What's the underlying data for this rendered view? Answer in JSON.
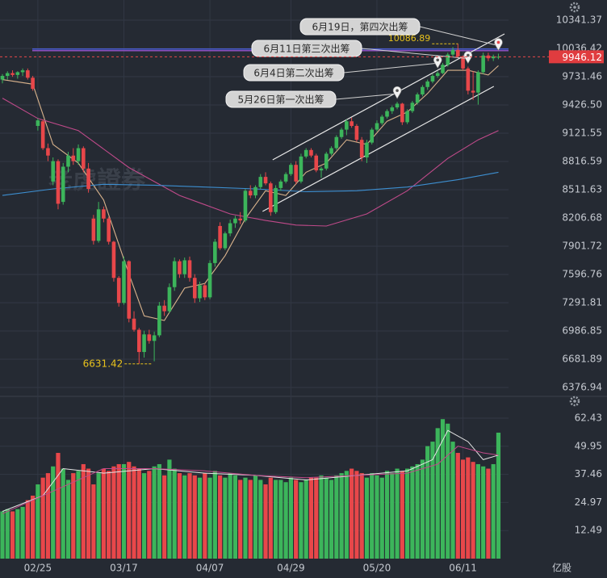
{
  "chart_data": {
    "type": "candlestick",
    "watermark": "老虎證券",
    "categories": [
      null,
      null,
      null,
      null,
      null,
      null,
      null,
      "02/25",
      null,
      null,
      null,
      null,
      null,
      null,
      null,
      null,
      null,
      null,
      null,
      null,
      null,
      null,
      null,
      null,
      "03/17",
      null,
      null,
      null,
      null,
      null,
      null,
      null,
      null,
      null,
      null,
      null,
      null,
      null,
      null,
      null,
      null,
      "04/07",
      null,
      null,
      null,
      null,
      null,
      null,
      null,
      null,
      null,
      null,
      null,
      null,
      null,
      null,
      null,
      "04/29",
      null,
      null,
      null,
      null,
      null,
      null,
      null,
      null,
      null,
      null,
      null,
      null,
      null,
      null,
      null,
      null,
      "05/20",
      null,
      null,
      null,
      null,
      null,
      null,
      null,
      null,
      null,
      null,
      null,
      null,
      null,
      null,
      null,
      null,
      "06/11",
      null,
      null,
      null,
      null,
      null,
      null,
      null
    ],
    "open": [
      9700,
      9740,
      9770,
      9750,
      9780,
      9800,
      9720,
      9200,
      9250,
      8960,
      8600,
      8820,
      8380,
      8760,
      8880,
      8820,
      8960,
      8740,
      8200,
      7960,
      8300,
      8200,
      7950,
      7560,
      7290,
      7740,
      7120,
      7000,
      6760,
      6950,
      6880,
      6940,
      7260,
      7200,
      7460,
      7740,
      7600,
      7750,
      7560,
      7340,
      7480,
      7350,
      7720,
      8120,
      7880,
      8040,
      8150,
      8200,
      8180,
      8500,
      8450,
      8540,
      8650,
      8580,
      8270,
      8530,
      8600,
      8680,
      8780,
      8600,
      8870,
      8940,
      8880,
      8720,
      8740,
      8900,
      8960,
      9080,
      9160,
      9250,
      9200,
      9050,
      8860,
      9020,
      9160,
      9230,
      9300,
      9360,
      9400,
      9440,
      9240,
      9360,
      9450,
      9540,
      9620,
      9680,
      9740,
      9770,
      9860,
      9970,
      10020,
      9950,
      9820,
      9580,
      9560,
      9780,
      9960,
      9930,
      9940
    ],
    "high": [
      9760,
      9790,
      9800,
      9790,
      9820,
      9820,
      9740,
      9280,
      9270,
      9010,
      8860,
      8840,
      8800,
      8920,
      8960,
      9000,
      8980,
      8800,
      8240,
      8380,
      8330,
      8220,
      7960,
      7580,
      7790,
      7750,
      7200,
      7020,
      6990,
      7000,
      6980,
      7300,
      7320,
      7500,
      7780,
      7760,
      7780,
      7790,
      7600,
      7520,
      7500,
      7750,
      7980,
      8160,
      8060,
      8190,
      8230,
      8270,
      8520,
      8560,
      8560,
      8680,
      8700,
      8600,
      8560,
      8620,
      8700,
      8800,
      8820,
      8900,
      8960,
      8960,
      8900,
      8760,
      8920,
      8980,
      9100,
      9180,
      9270,
      9290,
      9220,
      9080,
      9050,
      9180,
      9260,
      9320,
      9380,
      9420,
      9460,
      9450,
      9380,
      9470,
      9560,
      9640,
      9700,
      9760,
      9790,
      9880,
      9990,
      10050,
      10086.89,
      9960,
      9840,
      9790,
      9800,
      9990,
      9990,
      9970,
      9980
    ],
    "low": [
      9660,
      9700,
      9730,
      9710,
      9740,
      9700,
      9580,
      9150,
      8940,
      8820,
      8560,
      8300,
      8350,
      8700,
      8780,
      8780,
      8700,
      8480,
      7920,
      7940,
      8160,
      7920,
      7520,
      7250,
      7270,
      7080,
      6980,
      6631.42,
      6700,
      6850,
      6660,
      6920,
      7150,
      7180,
      7420,
      7560,
      7560,
      7520,
      7290,
      7300,
      7320,
      7330,
      7680,
      7860,
      7860,
      8010,
      8100,
      8140,
      8160,
      8420,
      8420,
      8520,
      8560,
      8230,
      8250,
      8500,
      8580,
      8660,
      8570,
      8580,
      8850,
      8860,
      8700,
      8640,
      8720,
      8880,
      8940,
      9060,
      9100,
      9180,
      9030,
      8820,
      8800,
      9000,
      9140,
      9210,
      9280,
      9330,
      9380,
      9210,
      9220,
      9340,
      9430,
      9520,
      9590,
      9660,
      9720,
      9760,
      9840,
      9950,
      9930,
      9800,
      9540,
      9480,
      9430,
      9760,
      9900,
      9900,
      9920
    ],
    "close": [
      9740,
      9770,
      9750,
      9780,
      9800,
      9720,
      9600,
      9260,
      8960,
      8880,
      8820,
      8360,
      8760,
      8880,
      8820,
      8960,
      8740,
      8520,
      7960,
      8300,
      8200,
      7950,
      7560,
      7290,
      7740,
      7120,
      7000,
      6760,
      6950,
      6880,
      6940,
      7260,
      7200,
      7460,
      7740,
      7600,
      7750,
      7560,
      7340,
      7480,
      7350,
      7720,
      7950,
      7880,
      8040,
      8150,
      8200,
      8180,
      8500,
      8450,
      8540,
      8650,
      8580,
      8270,
      8530,
      8600,
      8680,
      8780,
      8600,
      8870,
      8940,
      8880,
      8720,
      8740,
      8900,
      8960,
      9080,
      9160,
      9250,
      9200,
      9050,
      8860,
      9020,
      9160,
      9230,
      9300,
      9360,
      9400,
      9440,
      9240,
      9360,
      9450,
      9540,
      9620,
      9680,
      9740,
      9770,
      9860,
      9970,
      10020,
      9950,
      9820,
      9580,
      9560,
      9780,
      9960,
      9930,
      9950,
      9946.12
    ],
    "colors": {
      "up": "#3cb55b",
      "down": "#e8474a"
    },
    "ylim": [
      6290,
      10559
    ],
    "yticks": [
      10341.37,
      10036.42,
      9731.46,
      {
        "value": 9426.5,
        "label": "9426.50"
      },
      9121.55,
      8816.59,
      8511.63,
      8206.68,
      7901.72,
      7596.76,
      7291.81,
      6986.85,
      6681.89,
      6376.94
    ],
    "grid": true,
    "moving_averages": [
      {
        "color": "#d9b38c",
        "x": [
          0,
          6,
          10,
          15,
          20,
          25,
          28,
          32,
          36,
          40,
          44,
          48,
          52,
          56,
          60,
          64,
          68,
          72,
          76,
          80,
          84,
          88,
          92,
          96,
          98
        ],
        "values": [
          9700,
          9650,
          9000,
          8800,
          8400,
          7600,
          7150,
          7100,
          7450,
          7500,
          7800,
          8200,
          8500,
          8450,
          8700,
          8800,
          9050,
          9000,
          9250,
          9350,
          9550,
          9800,
          9800,
          9750,
          9850
        ]
      },
      {
        "color": "#c04a8a",
        "x": [
          0,
          7,
          15,
          25,
          35,
          45,
          52,
          58,
          64,
          72,
          80,
          88,
          94,
          98
        ],
        "values": [
          9500,
          9280,
          9150,
          8750,
          8450,
          8250,
          8180,
          8130,
          8120,
          8250,
          8500,
          8850,
          9050,
          9150
        ]
      },
      {
        "color": "#3d8fd1",
        "x": [
          0,
          10,
          20,
          30,
          40,
          50,
          60,
          70,
          80,
          90,
          98
        ],
        "values": [
          8450,
          8520,
          8570,
          8560,
          8540,
          8520,
          8490,
          8500,
          8540,
          8620,
          8700
        ]
      }
    ],
    "hlines": [
      {
        "value": 10030,
        "color": "#4a5bd4"
      },
      {
        "value": 10012,
        "color": "#8a4fbf"
      }
    ],
    "trendlines": [
      {
        "x": [
          53.4,
          99.2
        ],
        "values": [
          8834,
          10193
        ]
      },
      {
        "x": [
          51.4,
          97.1
        ],
        "values": [
          8277,
          9627
        ]
      }
    ],
    "annotations": [
      {
        "text": "5月26日第一次出筹",
        "index": 78
      },
      {
        "text": "6月4日第二次出筹",
        "index": 86
      },
      {
        "text": "6月11日第三次出筹",
        "index": 92
      },
      {
        "text": "6月19日，第四次出筹",
        "index": 98
      }
    ],
    "volume": {
      "values": [
        21,
        22,
        21,
        22,
        23,
        26,
        28,
        33,
        36,
        38,
        41,
        47,
        40,
        35,
        38,
        39,
        42,
        40,
        33,
        38,
        40,
        39,
        41,
        42,
        42,
        43,
        41,
        40,
        38,
        39,
        41,
        42,
        37,
        44,
        40,
        38,
        37,
        38,
        37,
        36,
        38,
        36,
        39,
        37,
        36,
        38,
        37,
        35,
        36,
        35,
        37,
        35,
        33,
        36,
        35,
        35,
        34,
        36,
        35,
        34,
        35,
        36,
        36,
        37,
        36,
        35,
        37,
        38,
        39,
        40,
        39,
        38,
        36,
        38,
        37,
        36,
        39,
        38,
        40,
        39,
        40,
        41,
        42,
        44,
        50,
        52,
        58,
        62,
        60,
        52,
        47,
        44,
        45,
        43,
        42,
        41,
        40,
        42,
        56
      ],
      "ylim": [
        0,
        68.9
      ],
      "yticks": [
        62.43,
        49.95,
        37.46,
        24.97,
        12.49
      ],
      "unit": "亿股",
      "moving_averages": [
        {
          "color": "#e6e6e6",
          "x": [
            0,
            8,
            12,
            20,
            30,
            40,
            50,
            60,
            70,
            80,
            85,
            88,
            92,
            95,
            98
          ],
          "values": [
            21,
            28,
            40,
            38,
            40,
            38,
            37,
            35,
            37,
            39,
            44,
            57,
            52,
            44,
            46
          ]
        },
        {
          "color": "#c04a8a",
          "x": [
            0,
            10,
            20,
            30,
            40,
            50,
            60,
            70,
            80,
            86,
            90,
            95,
            98
          ],
          "values": [
            20,
            30,
            40,
            40,
            39,
            37,
            36,
            37,
            38,
            42,
            50,
            47,
            46
          ]
        }
      ]
    }
  }
}
